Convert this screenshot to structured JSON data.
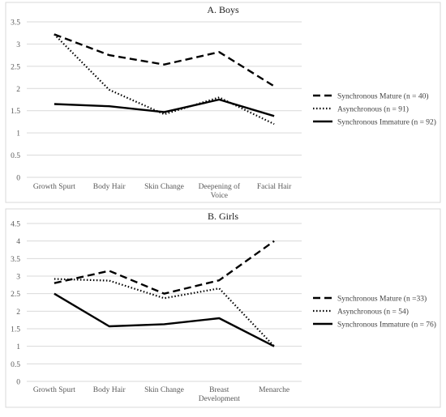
{
  "chart_data": [
    {
      "type": "line",
      "title": "A. Boys",
      "categories": [
        [
          "Growth Spurt"
        ],
        [
          "Body Hair"
        ],
        [
          "Skin Change"
        ],
        [
          "Deepening of",
          "Voice"
        ],
        [
          "Facial Hair"
        ]
      ],
      "ylim": [
        0,
        3.5
      ],
      "yticks": [
        "0",
        "0.5",
        "1",
        "1.5",
        "2",
        "2.5",
        "3",
        "3.5"
      ],
      "grid": true,
      "legend_position": "right",
      "series": [
        {
          "name": "Synchronous Mature (n = 40)",
          "style": "dashed",
          "values": [
            3.22,
            2.75,
            2.54,
            2.82,
            2.05
          ]
        },
        {
          "name": "Asynchronous (n = 91)",
          "style": "dotted",
          "values": [
            3.22,
            1.97,
            1.42,
            1.8,
            1.2
          ]
        },
        {
          "name": "Synchronous Immature (n = 92)",
          "style": "solid",
          "values": [
            1.65,
            1.6,
            1.47,
            1.75,
            1.38
          ]
        }
      ]
    },
    {
      "type": "line",
      "title": "B. Girls",
      "categories": [
        [
          "Growth Spurt"
        ],
        [
          "Body Hair"
        ],
        [
          "Skin Change"
        ],
        [
          "Breast",
          "Development"
        ],
        [
          "Menarche"
        ]
      ],
      "ylim": [
        0,
        4.5
      ],
      "yticks": [
        "0",
        "0.5",
        "1",
        "1.5",
        "2",
        "2.5",
        "3",
        "3.5",
        "4",
        "4.5"
      ],
      "grid": true,
      "legend_position": "right",
      "series": [
        {
          "name": "Synchronous Mature (n =33)",
          "style": "dashed",
          "values": [
            2.8,
            3.15,
            2.5,
            2.88,
            4.0
          ]
        },
        {
          "name": "Asynchronous (n = 54)",
          "style": "dotted",
          "values": [
            2.92,
            2.87,
            2.37,
            2.65,
            1.0
          ]
        },
        {
          "name": "Synchronous Immature (n = 76)",
          "style": "solid",
          "values": [
            2.5,
            1.57,
            1.63,
            1.8,
            1.0
          ]
        }
      ]
    }
  ]
}
